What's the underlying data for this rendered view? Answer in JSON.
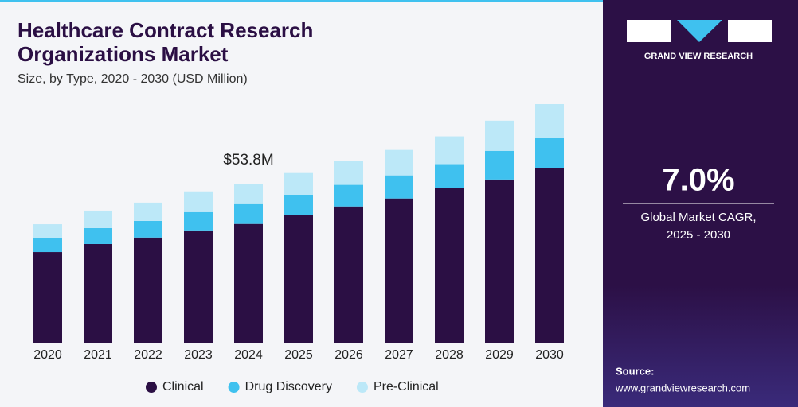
{
  "chart_data": {
    "type": "stacked_bar",
    "title": [
      "Healthcare Contract Research",
      "Organizations Market"
    ],
    "subtitle": "Size, by Type, 2020 - 2030 (USD Million)",
    "categories": [
      "2020",
      "2021",
      "2022",
      "2023",
      "2024",
      "2025",
      "2026",
      "2027",
      "2028",
      "2029",
      "2030"
    ],
    "series": [
      {
        "name": "Clinical",
        "color": "#2b0f44",
        "values": [
          30.9,
          33.6,
          35.8,
          38.2,
          40.4,
          43.3,
          46.3,
          49.0,
          52.5,
          55.4,
          59.4
        ]
      },
      {
        "name": "Drug Discovery",
        "color": "#3fc1ef",
        "values": [
          4.8,
          5.4,
          5.6,
          6.2,
          6.7,
          7.0,
          7.3,
          7.8,
          8.1,
          9.7,
          10.2
        ]
      },
      {
        "name": "Pre-Clinical",
        "color": "#bce8f8",
        "values": [
          4.6,
          5.9,
          6.2,
          7.0,
          6.7,
          7.3,
          8.1,
          8.6,
          9.4,
          10.2,
          11.3
        ]
      }
    ],
    "annotation": {
      "x": "2024",
      "value": 53.8,
      "label": "$53.8M"
    }
  },
  "panel": {
    "brand": "GRAND VIEW RESEARCH",
    "cagr": "7.0%",
    "cagr_label": [
      "Global Market CAGR,",
      "2025 - 2030"
    ],
    "source_label": "Source:",
    "source_url": "www.grandviewresearch.com"
  }
}
